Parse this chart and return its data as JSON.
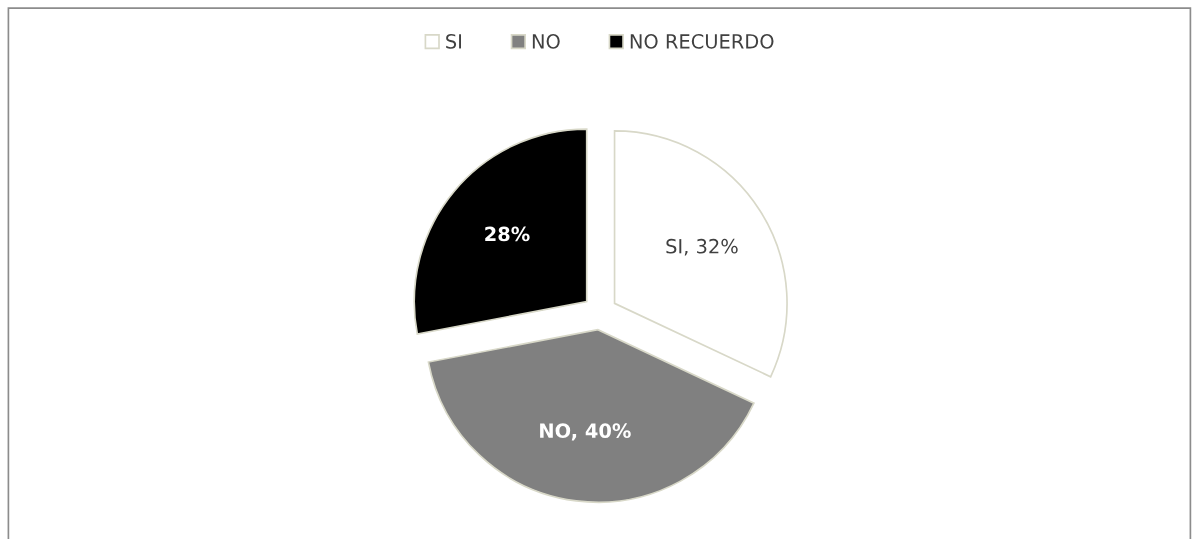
{
  "chart_data": {
    "type": "pie",
    "categories": [
      "SI",
      "NO",
      "NO RECUERDO"
    ],
    "values": [
      32,
      40,
      28
    ],
    "colors": [
      "#ffffff",
      "#808080",
      "#000000"
    ],
    "value_labels": [
      "SI, 32%",
      "NO, 40%",
      "28%"
    ],
    "legend": "top"
  }
}
